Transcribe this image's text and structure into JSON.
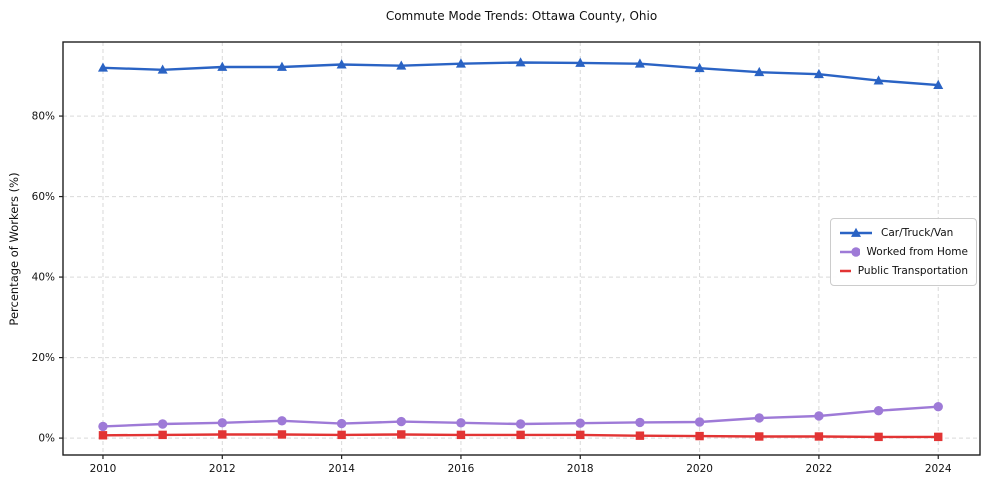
{
  "chart_data": {
    "type": "line",
    "title": "Commute Mode Trends: Ottawa County, Ohio",
    "xlabel": "",
    "ylabel": "Percentage of Workers (%)",
    "x": [
      2010,
      2011,
      2012,
      2013,
      2014,
      2015,
      2016,
      2017,
      2018,
      2019,
      2020,
      2021,
      2022,
      2023,
      2024
    ],
    "series": [
      {
        "name": "Car/Truck/Van",
        "color": "#2a63c4",
        "marker": "triangle",
        "values": [
          92.0,
          91.5,
          92.2,
          92.2,
          92.8,
          92.5,
          93.0,
          93.3,
          93.2,
          93.0,
          91.9,
          90.9,
          90.4,
          88.8,
          87.7
        ]
      },
      {
        "name": "Worked from Home",
        "color": "#9e7ad7",
        "marker": "circle",
        "values": [
          2.9,
          3.5,
          3.8,
          4.3,
          3.6,
          4.1,
          3.8,
          3.5,
          3.7,
          3.9,
          4.0,
          5.0,
          5.5,
          6.8,
          7.8
        ]
      },
      {
        "name": "Public Transportation",
        "color": "#e23434",
        "marker": "square",
        "values": [
          0.7,
          0.8,
          0.9,
          0.9,
          0.8,
          0.9,
          0.8,
          0.8,
          0.8,
          0.6,
          0.5,
          0.4,
          0.4,
          0.3,
          0.3
        ]
      }
    ],
    "xticks": [
      2010,
      2012,
      2014,
      2016,
      2018,
      2020,
      2022,
      2024
    ],
    "xtick_labels": [
      "2010",
      "2012",
      "2014",
      "2016",
      "2018",
      "2020",
      "2022",
      "2024"
    ],
    "yticks": [
      0,
      20,
      40,
      60,
      80
    ],
    "ytick_labels": [
      "0%",
      "20%",
      "40%",
      "60%",
      "80%"
    ],
    "xlim": [
      2009.33,
      2024.7
    ],
    "ylim": [
      -4.2,
      98.4
    ],
    "grid": true,
    "legend_position": "center right"
  }
}
